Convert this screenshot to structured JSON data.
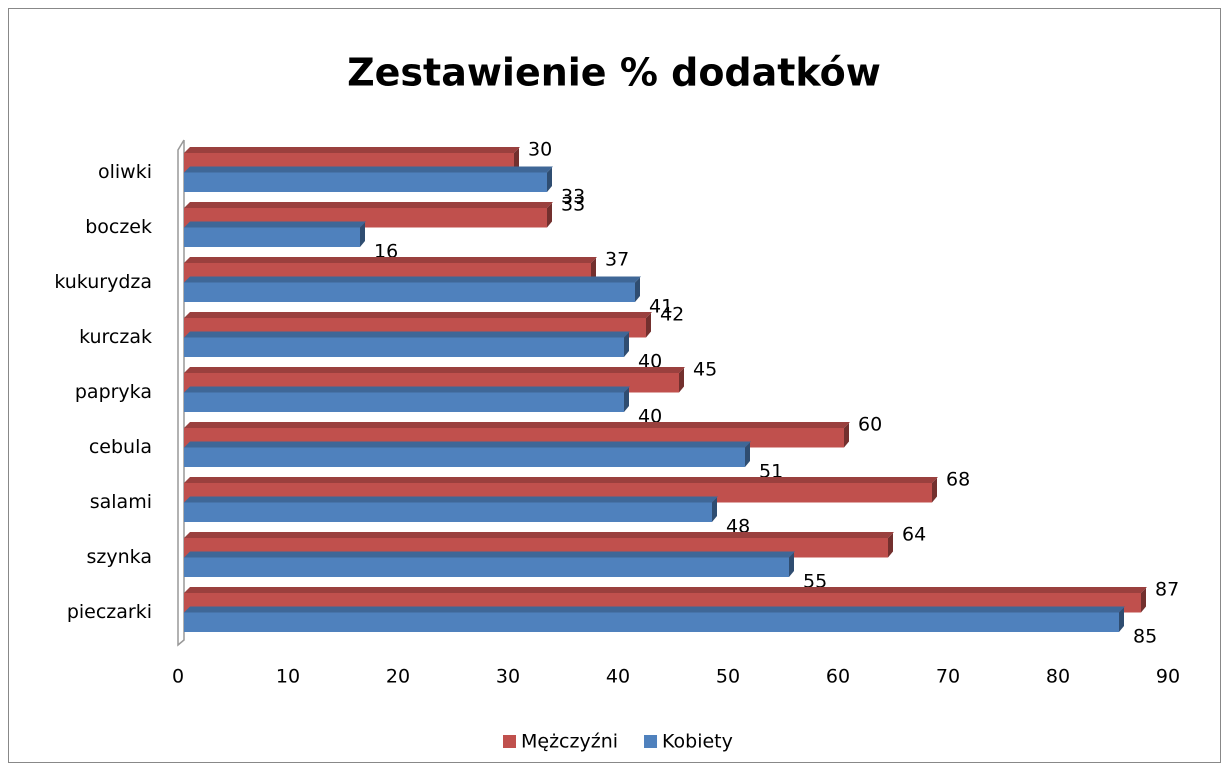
{
  "chart_data": {
    "type": "bar",
    "orientation": "horizontal",
    "title": "Zestawienie % dodatków",
    "categories": [
      "oliwki",
      "boczek",
      "kukurydza",
      "kurczak",
      "papryka",
      "cebula",
      "salami",
      "szynka",
      "pieczarki"
    ],
    "series": [
      {
        "name": "Mężczyźni",
        "color": "#c0504d",
        "values": [
          30,
          33,
          37,
          42,
          45,
          60,
          68,
          64,
          87
        ]
      },
      {
        "name": "Kobiety",
        "color": "#4f81bd",
        "values": [
          33,
          16,
          41,
          40,
          40,
          51,
          48,
          55,
          85
        ]
      }
    ],
    "xlim": [
      0,
      90
    ],
    "xticks": [
      0,
      10,
      20,
      30,
      40,
      50,
      60,
      70,
      80,
      90
    ],
    "legend": "bottom",
    "grid": false
  }
}
